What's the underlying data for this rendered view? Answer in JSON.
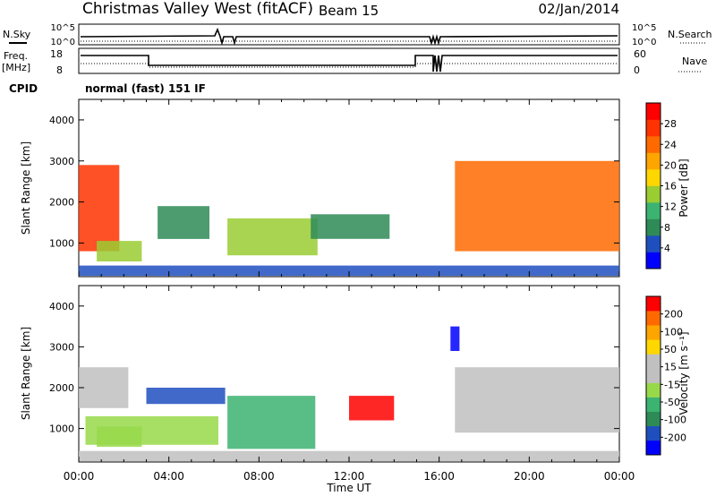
{
  "header": {
    "station": "Christmas Valley West (fitACF)",
    "beam": "Beam 15",
    "date": "02/Jan/2014"
  },
  "top_panels": {
    "nsky_label": "N.Sky",
    "nsky_ticks": [
      "10^5",
      "10^0"
    ],
    "nsearch_label": "N.Search",
    "nsearch_ticks": [
      "10^5",
      "10^0"
    ],
    "freq_label": "Freq.",
    "freq_unit": "[MHz]",
    "freq_ticks": [
      "18",
      "8"
    ],
    "nave_label": "Nave",
    "nave_ticks": [
      "60",
      "0"
    ],
    "cpid_label": "CPID",
    "cpid_value": "normal (fast) 151 IF"
  },
  "colors": {
    "power_scale": [
      "#0000ff",
      "#1f4fbf",
      "#2e8b57",
      "#3cb371",
      "#9acd32",
      "#ffd700",
      "#ffa500",
      "#ff6a00",
      "#ff3300",
      "#ff0000"
    ],
    "velocity_scale": [
      "#0000ff",
      "#1f4fbf",
      "#2e8b57",
      "#3cb371",
      "#98d94a",
      "#c0c0c0",
      "#c0c0c0",
      "#ffd700",
      "#ffa500",
      "#ff6a00",
      "#ff0000"
    ]
  },
  "chart_data": [
    {
      "type": "heatmap",
      "name": "power",
      "ylabel": "Slant Range [km]",
      "xlabel": "Time UT",
      "x_range": [
        "00:00",
        "00:00"
      ],
      "x_hours": [
        0,
        24
      ],
      "x_ticks": [
        "00:00",
        "04:00",
        "08:00",
        "12:00",
        "16:00",
        "20:00",
        "00:00"
      ],
      "ylim": [
        180,
        4500
      ],
      "y_ticks": [
        1000,
        2000,
        3000,
        4000
      ],
      "colorbar": {
        "label": "Power [dB]",
        "ticks": [
          "4",
          "8",
          "12",
          "16",
          "20",
          "24",
          "28"
        ],
        "range": [
          0,
          30
        ]
      },
      "regions": [
        {
          "t0": 0.0,
          "t1": 1.8,
          "r0": 800,
          "r1": 2900,
          "value": 25
        },
        {
          "t0": 0.8,
          "t1": 2.8,
          "r0": 550,
          "r1": 1050,
          "value": 12
        },
        {
          "t0": 3.5,
          "t1": 5.8,
          "r0": 1100,
          "r1": 1900,
          "value": 7
        },
        {
          "t0": 6.6,
          "t1": 10.6,
          "r0": 700,
          "r1": 1600,
          "value": 14
        },
        {
          "t0": 10.3,
          "t1": 13.8,
          "r0": 1100,
          "r1": 1700,
          "value": 7
        },
        {
          "t0": 16.7,
          "t1": 24.0,
          "r0": 800,
          "r1": 3000,
          "value": 22
        },
        {
          "t0": 0.0,
          "t1": 24.0,
          "r0": 200,
          "r1": 450,
          "value": 5
        }
      ]
    },
    {
      "type": "heatmap",
      "name": "velocity",
      "ylabel": "Slant Range [km]",
      "xlabel": "Time UT",
      "x_range": [
        "00:00",
        "00:00"
      ],
      "x_hours": [
        0,
        24
      ],
      "x_ticks": [
        "00:00",
        "04:00",
        "08:00",
        "12:00",
        "16:00",
        "20:00",
        "00:00"
      ],
      "ylim": [
        180,
        4500
      ],
      "y_ticks": [
        1000,
        2000,
        3000,
        4000
      ],
      "colorbar": {
        "label": "Velocity [m s⁻¹]",
        "ticks": [
          "200",
          "100",
          "50",
          "15",
          "-15",
          "-50",
          "-100",
          "-200"
        ],
        "range": [
          -250,
          250
        ]
      },
      "regions": [
        {
          "t0": 0.0,
          "t1": 2.2,
          "r0": 1500,
          "r1": 2500,
          "value": 0
        },
        {
          "t0": 0.8,
          "t1": 2.8,
          "r0": 550,
          "r1": 1050,
          "value": -40
        },
        {
          "t0": 3.0,
          "t1": 6.5,
          "r0": 1600,
          "r1": 2000,
          "value": -180
        },
        {
          "t0": 0.3,
          "t1": 6.2,
          "r0": 600,
          "r1": 1300,
          "value": -60
        },
        {
          "t0": 6.6,
          "t1": 10.5,
          "r0": 500,
          "r1": 1800,
          "value": -70
        },
        {
          "t0": 12.0,
          "t1": 14.0,
          "r0": 1200,
          "r1": 1800,
          "value": 220
        },
        {
          "t0": 16.5,
          "t1": 16.9,
          "r0": 2900,
          "r1": 3500,
          "value": -230
        },
        {
          "t0": 16.7,
          "t1": 24.0,
          "r0": 900,
          "r1": 2500,
          "value": 0
        },
        {
          "t0": 0.0,
          "t1": 24.0,
          "r0": 200,
          "r1": 450,
          "value": 40
        }
      ]
    }
  ]
}
